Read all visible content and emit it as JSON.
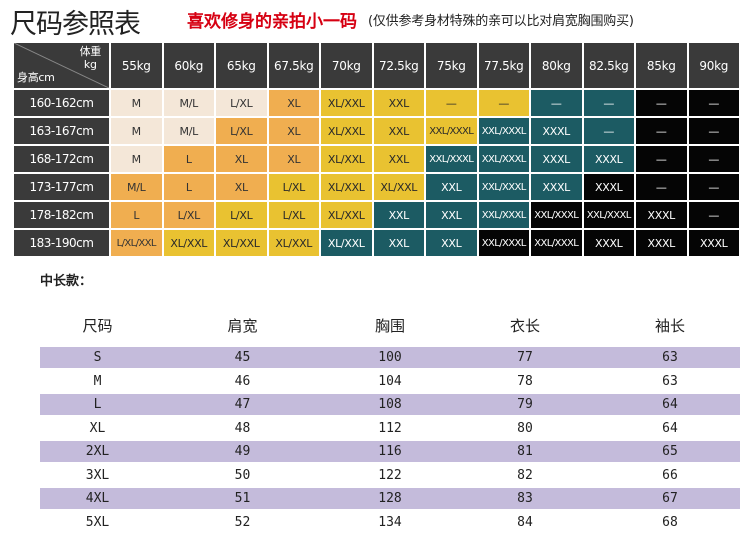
{
  "header": {
    "title": "尺码参照表",
    "subtitle": "喜欢修身的亲拍小一码",
    "note": "(仅供参考身材特殊的亲可以比对肩宽胸围购买)"
  },
  "size_chart": {
    "corner_weight": "体重",
    "corner_weight_unit": "kg",
    "corner_height": "身高cm",
    "weights": [
      "55kg",
      "60kg",
      "65kg",
      "67.5kg",
      "70kg",
      "72.5kg",
      "75kg",
      "77.5kg",
      "80kg",
      "82.5kg",
      "85kg",
      "90kg"
    ],
    "rows": [
      {
        "height": "160-162cm",
        "cells": [
          {
            "t": "M",
            "c": "beige"
          },
          {
            "t": "M/L",
            "c": "beige"
          },
          {
            "t": "L/XL",
            "c": "beige"
          },
          {
            "t": "XL",
            "c": "orange"
          },
          {
            "t": "XL/XXL",
            "c": "yellow"
          },
          {
            "t": "XXL",
            "c": "yellow"
          },
          {
            "t": "—",
            "c": "yellow"
          },
          {
            "t": "—",
            "c": "yellow"
          },
          {
            "t": "—",
            "c": "teal"
          },
          {
            "t": "—",
            "c": "teal"
          },
          {
            "t": "—",
            "c": "black"
          },
          {
            "t": "—",
            "c": "black"
          }
        ]
      },
      {
        "height": "163-167cm",
        "cells": [
          {
            "t": "M",
            "c": "beige"
          },
          {
            "t": "M/L",
            "c": "beige"
          },
          {
            "t": "L/XL",
            "c": "orange"
          },
          {
            "t": "XL",
            "c": "orange"
          },
          {
            "t": "XL/XXL",
            "c": "yellow"
          },
          {
            "t": "XXL",
            "c": "yellow"
          },
          {
            "t": "XXL/XXXL",
            "c": "yellow"
          },
          {
            "t": "XXL/XXXL",
            "c": "teal"
          },
          {
            "t": "XXXL",
            "c": "teal"
          },
          {
            "t": "—",
            "c": "teal"
          },
          {
            "t": "—",
            "c": "black"
          },
          {
            "t": "—",
            "c": "black"
          }
        ]
      },
      {
        "height": "168-172cm",
        "cells": [
          {
            "t": "M",
            "c": "beige"
          },
          {
            "t": "L",
            "c": "orange"
          },
          {
            "t": "XL",
            "c": "orange"
          },
          {
            "t": "XL",
            "c": "orange"
          },
          {
            "t": "XL/XXL",
            "c": "yellow"
          },
          {
            "t": "XXL",
            "c": "yellow"
          },
          {
            "t": "XXL/XXXL",
            "c": "teal"
          },
          {
            "t": "XXL/XXXL",
            "c": "teal"
          },
          {
            "t": "XXXL",
            "c": "teal"
          },
          {
            "t": "XXXL",
            "c": "teal"
          },
          {
            "t": "—",
            "c": "black"
          },
          {
            "t": "—",
            "c": "black"
          }
        ]
      },
      {
        "height": "173-177cm",
        "cells": [
          {
            "t": "M/L",
            "c": "orange"
          },
          {
            "t": "L",
            "c": "orange"
          },
          {
            "t": "XL",
            "c": "orange"
          },
          {
            "t": "L/XL",
            "c": "yellow"
          },
          {
            "t": "XL/XXL",
            "c": "yellow"
          },
          {
            "t": "XL/XXL",
            "c": "yellow"
          },
          {
            "t": "XXL",
            "c": "teal"
          },
          {
            "t": "XXL/XXXL",
            "c": "teal"
          },
          {
            "t": "XXXL",
            "c": "teal"
          },
          {
            "t": "XXXL",
            "c": "black"
          },
          {
            "t": "—",
            "c": "black"
          },
          {
            "t": "—",
            "c": "black"
          }
        ]
      },
      {
        "height": "178-182cm",
        "cells": [
          {
            "t": "L",
            "c": "orange"
          },
          {
            "t": "L/XL",
            "c": "orange"
          },
          {
            "t": "L/XL",
            "c": "yellow"
          },
          {
            "t": "L/XL",
            "c": "yellow"
          },
          {
            "t": "XL/XXL",
            "c": "yellow"
          },
          {
            "t": "XXL",
            "c": "teal"
          },
          {
            "t": "XXL",
            "c": "teal"
          },
          {
            "t": "XXL/XXXL",
            "c": "teal"
          },
          {
            "t": "XXL/XXXL",
            "c": "black"
          },
          {
            "t": "XXL/XXXL",
            "c": "black"
          },
          {
            "t": "XXXL",
            "c": "black"
          },
          {
            "t": "—",
            "c": "black"
          }
        ]
      },
      {
        "height": "183-190cm",
        "cells": [
          {
            "t": "L/XL/XXL",
            "c": "orange"
          },
          {
            "t": "XL/XXL",
            "c": "yellow"
          },
          {
            "t": "XL/XXL",
            "c": "yellow"
          },
          {
            "t": "XL/XXL",
            "c": "yellow"
          },
          {
            "t": "XL/XXL",
            "c": "teal"
          },
          {
            "t": "XXL",
            "c": "teal"
          },
          {
            "t": "XXL",
            "c": "teal"
          },
          {
            "t": "XXL/XXXL",
            "c": "black"
          },
          {
            "t": "XXL/XXXL",
            "c": "black"
          },
          {
            "t": "XXXL",
            "c": "black"
          },
          {
            "t": "XXXL",
            "c": "black"
          },
          {
            "t": "XXXL",
            "c": "black"
          }
        ]
      }
    ]
  },
  "section_label": "中长款：",
  "measurements": {
    "headers": [
      "尺码",
      "肩宽",
      "胸围",
      "衣长",
      "袖长"
    ],
    "rows": [
      [
        "S",
        "45",
        "100",
        "77",
        "63"
      ],
      [
        "M",
        "46",
        "104",
        "78",
        "63"
      ],
      [
        "L",
        "47",
        "108",
        "79",
        "64"
      ],
      [
        "XL",
        "48",
        "112",
        "80",
        "64"
      ],
      [
        "2XL",
        "49",
        "116",
        "81",
        "65"
      ],
      [
        "3XL",
        "50",
        "122",
        "82",
        "66"
      ],
      [
        "4XL",
        "51",
        "128",
        "83",
        "67"
      ],
      [
        "5XL",
        "52",
        "134",
        "84",
        "68"
      ]
    ]
  },
  "colors": {
    "beige": "#f4e7d8",
    "orange": "#f0ae50",
    "yellow": "#e9c231",
    "teal": "#1c5b63",
    "black": "#050505",
    "purple_row": "#c4bbdb",
    "header_bg": "#3a3a3a",
    "accent_red": "#d60012"
  }
}
